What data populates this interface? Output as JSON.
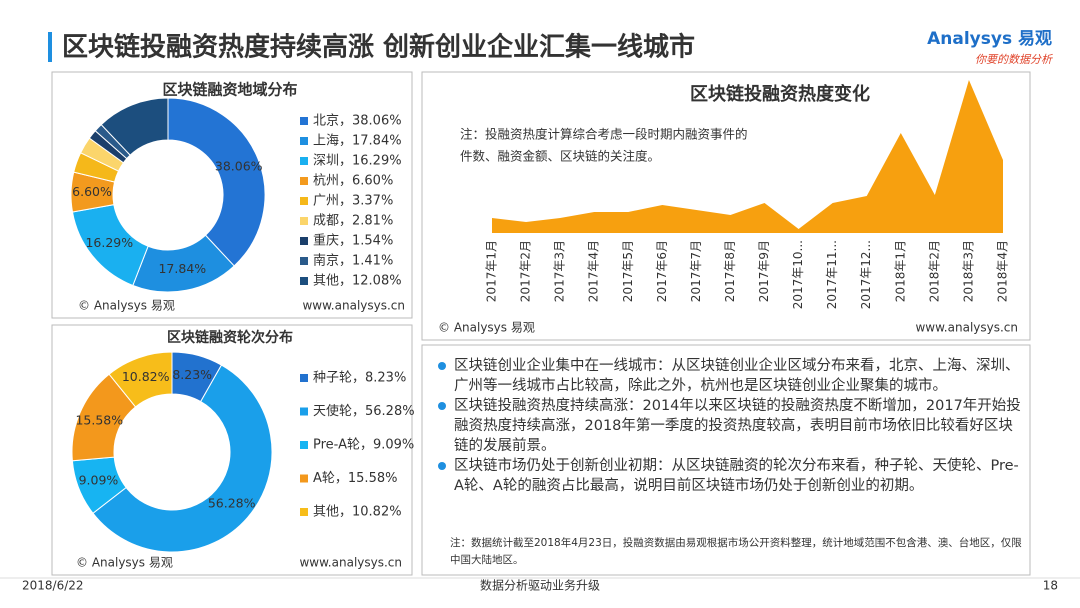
{
  "title": "区块链投融资热度持续高涨 创新创业企业汇集一线城市",
  "logo": {
    "brand": "Analysys 易观",
    "slogan": "你要的数据分析"
  },
  "chart_data": [
    {
      "type": "donut",
      "title": "区块链融资地域分布",
      "categories": [
        "北京，38.06%",
        "上海，17.84%",
        "深圳，16.29%",
        "杭州，6.60%",
        "广州，3.37%",
        "成都，2.81%",
        "重庆，1.54%",
        "南京，1.41%",
        "其他，12.08%"
      ],
      "values": [
        38.06,
        17.84,
        16.29,
        6.6,
        3.37,
        2.81,
        1.54,
        1.41,
        12.08
      ],
      "value_labels": [
        "38.06%",
        "17.84%",
        "16.29%",
        "6.60%",
        null,
        null,
        null,
        null,
        null
      ],
      "colors": [
        "#2374d4",
        "#1e8fe0",
        "#1ab0f0",
        "#f39a1e",
        "#f5b81a",
        "#fbd56b",
        "#1b3f6b",
        "#2a5a8a",
        "#1c4e7e"
      ],
      "source": "© Analysys 易观",
      "url": "www.analysys.cn"
    },
    {
      "type": "area",
      "title": "区块链投融资热度变化",
      "note": [
        "注：投融资热度计算综合考虑一段时期内融资事件的",
        "件数、融资金额、区块链的关注度。"
      ],
      "categories": [
        "2017年1月",
        "2017年2月",
        "2017年3月",
        "2017年4月",
        "2017年5月",
        "2017年6月",
        "2017年7月",
        "2017年8月",
        "2017年9月",
        "2017年10...",
        "2017年11...",
        "2017年12...",
        "2018年1月",
        "2018年2月",
        "2018年3月",
        "2018年4月"
      ],
      "values": [
        15,
        11,
        15,
        21,
        21,
        28,
        23,
        18,
        30,
        4,
        30,
        37,
        100,
        38,
        153,
        73
      ],
      "color": "#f7a00f",
      "source": "© Analysys 易观",
      "url": "www.analysys.cn"
    },
    {
      "type": "donut",
      "title": "区块链融资轮次分布",
      "categories": [
        "种子轮，8.23%",
        "天使轮，56.28%",
        "Pre-A轮，9.09%",
        "A轮，15.58%",
        "其他，10.82%"
      ],
      "values": [
        8.23,
        56.28,
        9.09,
        15.58,
        10.82
      ],
      "value_labels": [
        "8.23%",
        "56.28%",
        "9.09%",
        "15.58%",
        "10.82%"
      ],
      "colors": [
        "#2272cf",
        "#1a9fea",
        "#17b4f2",
        "#f3981c",
        "#f7bd1a"
      ],
      "source": "© Analysys 易观",
      "url": "www.analysys.cn"
    }
  ],
  "bullets": [
    "区块链创业企业集中在一线城市：从区块链创业企业区域分布来看，北京、上海、深圳、广州等一线城市占比较高，除此之外，杭州也是区块链创业企业聚集的城市。",
    "区块链投融资热度持续高涨：2014年以来区块链的投融资热度不断增加，2017年开始投融资热度持续高涨，2018年第一季度的投资热度较高，表明目前市场依旧比较看好区块链的发展前景。",
    "区块链市场仍处于创新创业初期：从区块链融资的轮次分布来看，种子轮、天使轮、Pre-A轮、A轮的融资占比最高，说明目前区块链市场仍处于创新创业的初期。"
  ],
  "footnote": "注：数据统计截至2018年4月23日，投融资数据由易观根据市场公开资料整理，统计地域范围不包含港、澳、台地区，仅限中国大陆地区。",
  "footer": {
    "date": "2018/6/22",
    "slogan": "数据分析驱动业务升级",
    "page": "18"
  }
}
